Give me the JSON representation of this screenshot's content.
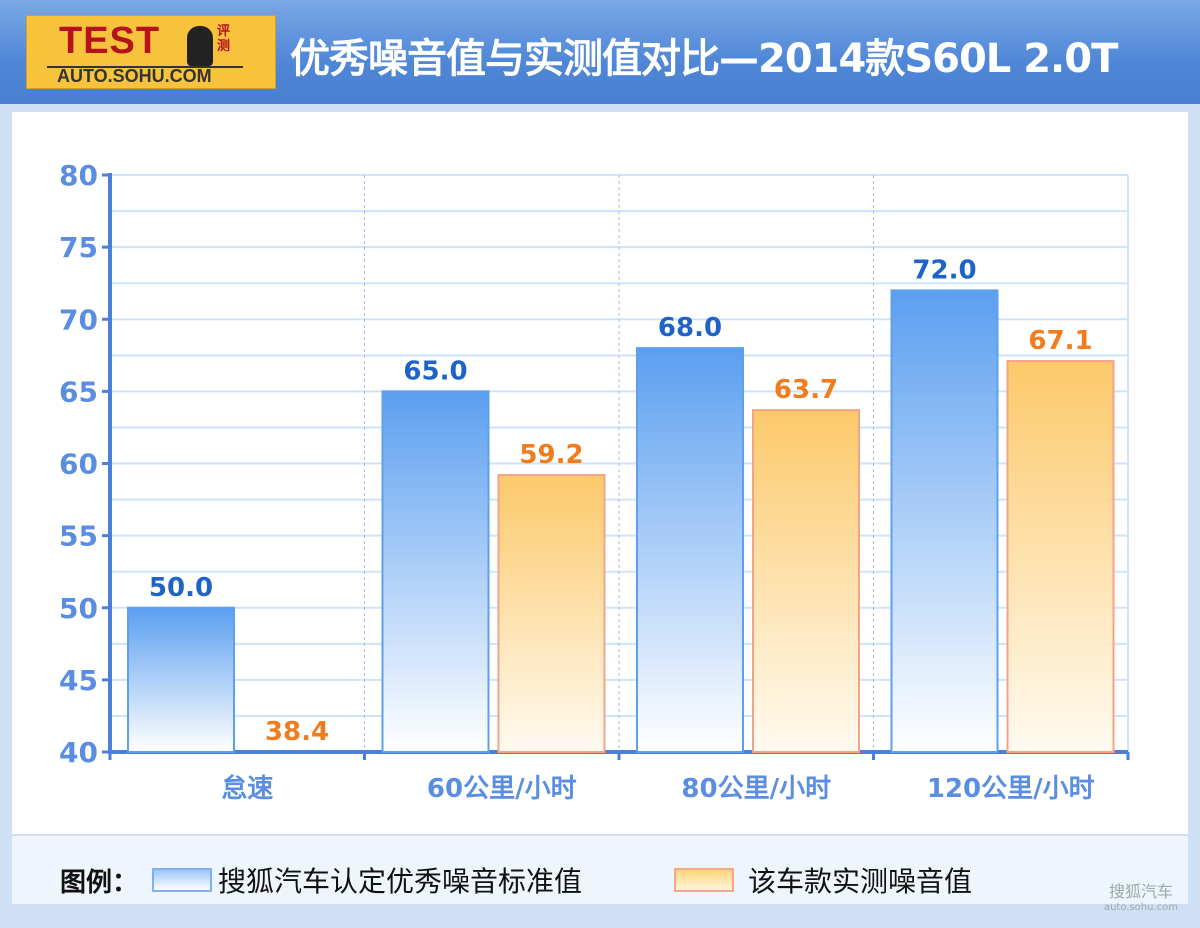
{
  "header": {
    "logo_text": "TEST",
    "logo_sub": "评测",
    "logo_url": "AUTO.SOHU.COM",
    "title": "优秀噪音值与实测值对比—2014款S60L 2.0T"
  },
  "legend": {
    "title": "图例：",
    "items": [
      "搜狐汽车认定优秀噪音标准值",
      "该车款实测噪音值"
    ]
  },
  "watermark": {
    "name": "搜狐汽车",
    "url": "auto.sohu.com"
  },
  "colors": {
    "standard": "#5b9ff0",
    "measured": "#fcc96a",
    "standard_label": "#1e64c8",
    "measured_label": "#f07c1e",
    "axis": "#4a80dc"
  },
  "chart_data": {
    "type": "bar",
    "title": "优秀噪音值与实测值对比—2014款S60L 2.0T",
    "xlabel": "",
    "ylabel": "",
    "categories": [
      "怠速",
      "60公里/小时",
      "80公里/小时",
      "120公里/小时"
    ],
    "series": [
      {
        "name": "搜狐汽车认定优秀噪音标准值",
        "values": [
          50.0,
          65.0,
          68.0,
          72.0
        ],
        "labels": [
          "50.0",
          "65.0",
          "68.0",
          "72.0"
        ]
      },
      {
        "name": "该车款实测噪音值",
        "values": [
          38.4,
          59.2,
          63.7,
          67.1
        ],
        "labels": [
          "38.4",
          "59.2",
          "63.7",
          "67.1"
        ]
      }
    ],
    "ylim": [
      40,
      80
    ],
    "yticks": [
      "40",
      "45",
      "50",
      "55",
      "60",
      "65",
      "70",
      "75",
      "80"
    ],
    "grid": true,
    "legend_position": "bottom"
  }
}
